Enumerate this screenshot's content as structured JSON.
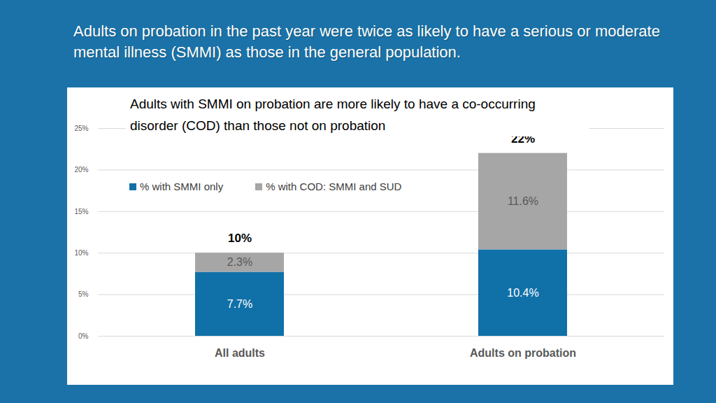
{
  "slide_title": "Adults on probation in the past year were twice as likely to have a serious or moderate mental illness (SMMI) as those in the general population.",
  "chart_data": {
    "type": "bar",
    "title": "Adults with SMMI on probation are more likely to have a co-occurring disorder (COD) than those not on probation",
    "categories": [
      "All adults",
      "Adults on probation"
    ],
    "series": [
      {
        "name": "% with SMMI only",
        "color": "#1070a8",
        "values": [
          7.7,
          10.4
        ],
        "value_labels": [
          "7.7%",
          "10.4%"
        ]
      },
      {
        "name": "% with COD: SMMI and SUD",
        "color": "#a6a6a6",
        "values": [
          2.3,
          11.6
        ],
        "value_labels": [
          "2.3%",
          "11.6%"
        ]
      }
    ],
    "totals": [
      10,
      22
    ],
    "total_labels": [
      "10%",
      "22%"
    ],
    "stacked": true,
    "data_labels": true,
    "legend": "top",
    "grid": true,
    "ylim": [
      0,
      25
    ],
    "yticks": [
      {
        "value": 0,
        "label": "0%"
      },
      {
        "value": 5,
        "label": "5%"
      },
      {
        "value": 10,
        "label": "10%"
      },
      {
        "value": 15,
        "label": "15%"
      },
      {
        "value": 20,
        "label": "20%"
      },
      {
        "value": 25,
        "label": "25%"
      }
    ]
  }
}
